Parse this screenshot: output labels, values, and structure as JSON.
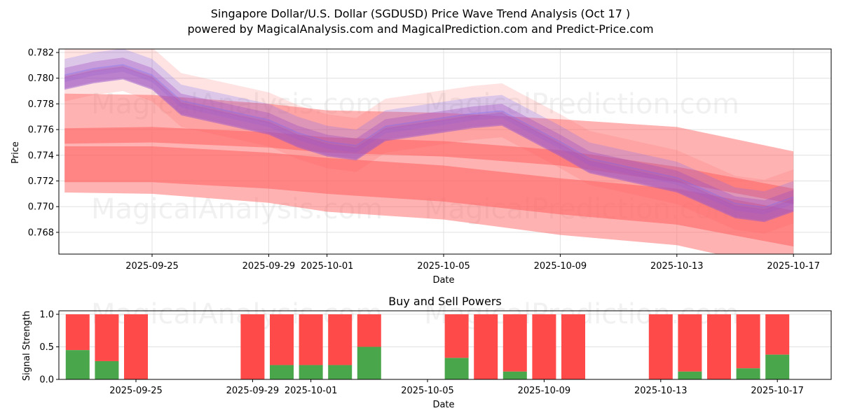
{
  "title": {
    "line1": "Singapore Dollar/U.S. Dollar (SGDUSD) Price Wave Trend Analysis (Oct 17 )",
    "line2": "powered by MagicalAnalysis.com and MagicalPrediction.com and Predict-Price.com"
  },
  "watermarks": [
    "MagicalAnalysis.com",
    "MagicalPrediction.com"
  ],
  "colors": {
    "buy": "#4aa64a",
    "sell": "#ff4a4a",
    "band_red": "#ff6666",
    "band_blue": "#6666ff",
    "band_purple": "#a04cc0"
  },
  "chart_data": [
    {
      "type": "area",
      "title": "",
      "xlabel": "Date",
      "ylabel": "Price",
      "ylim": [
        0.7663,
        0.7823
      ],
      "xlim": [
        "2025-09-21",
        "2025-10-18"
      ],
      "grid": true,
      "yticks": [
        "0.768",
        "0.770",
        "0.772",
        "0.774",
        "0.776",
        "0.778",
        "0.780",
        "0.782"
      ],
      "xticks": [
        "2025-09-25",
        "2025-09-29",
        "2025-10-01",
        "2025-10-05",
        "2025-10-09",
        "2025-10-13",
        "2025-10-17"
      ],
      "x": [
        "2025-09-22",
        "2025-09-23",
        "2025-09-24",
        "2025-09-25",
        "2025-09-26",
        "2025-09-29",
        "2025-09-30",
        "2025-10-01",
        "2025-10-02",
        "2025-10-03",
        "2025-10-06",
        "2025-10-07",
        "2025-10-08",
        "2025-10-09",
        "2025-10-10",
        "2025-10-13",
        "2025-10-14",
        "2025-10-15",
        "2025-10-16",
        "2025-10-17"
      ],
      "price_estimate": [
        0.78,
        0.7805,
        0.7808,
        0.78,
        0.778,
        0.7765,
        0.7755,
        0.7748,
        0.7745,
        0.776,
        0.777,
        0.7772,
        0.776,
        0.7748,
        0.7735,
        0.772,
        0.771,
        0.77,
        0.7697,
        0.7705
      ],
      "series": [
        {
          "name": "outer-red-band-upper",
          "x": [
            "2025-09-22",
            "2025-09-25",
            "2025-09-29",
            "2025-10-01",
            "2025-10-05",
            "2025-10-09",
            "2025-10-13",
            "2025-10-17"
          ],
          "values": [
            0.7788,
            0.7787,
            0.778,
            0.7775,
            0.7773,
            0.7768,
            0.7762,
            0.7743
          ]
        },
        {
          "name": "outer-red-band-lower",
          "x": [
            "2025-09-22",
            "2025-09-25",
            "2025-09-29",
            "2025-10-01",
            "2025-10-05",
            "2025-10-09",
            "2025-10-13",
            "2025-10-17"
          ],
          "values": [
            0.7711,
            0.771,
            0.7703,
            0.7696,
            0.769,
            0.7678,
            0.767,
            0.765
          ]
        },
        {
          "name": "red-trend-band-1",
          "x": [
            "2025-09-22",
            "2025-09-25",
            "2025-09-29",
            "2025-10-01",
            "2025-10-05",
            "2025-10-09",
            "2025-10-13",
            "2025-10-17"
          ],
          "values": [
            0.7755,
            0.7756,
            0.7752,
            0.7748,
            0.7745,
            0.7738,
            0.7725,
            0.7708
          ]
        },
        {
          "name": "red-trend-band-2",
          "x": [
            "2025-09-22",
            "2025-09-25",
            "2025-09-29",
            "2025-10-01",
            "2025-10-05",
            "2025-10-09",
            "2025-10-13",
            "2025-10-17"
          ],
          "values": [
            0.7733,
            0.7733,
            0.7728,
            0.7724,
            0.7718,
            0.7708,
            0.77,
            0.7683
          ]
        }
      ]
    },
    {
      "type": "bar",
      "title": "Buy and Sell Powers",
      "xlabel": "Date",
      "ylabel": "Signal Strength",
      "ylim": [
        0,
        1.05
      ],
      "yticks": [
        "0.0",
        "0.5",
        "1.0"
      ],
      "xticks": [
        "2025-09-25",
        "2025-09-29",
        "2025-10-01",
        "2025-10-05",
        "2025-10-09",
        "2025-10-13",
        "2025-10-17"
      ],
      "categories": [
        "2025-09-23",
        "2025-09-24",
        "2025-09-25",
        "2025-09-29",
        "2025-09-30",
        "2025-10-01",
        "2025-10-02",
        "2025-10-03",
        "2025-10-06",
        "2025-10-07",
        "2025-10-08",
        "2025-10-09",
        "2025-10-10",
        "2025-10-13",
        "2025-10-14",
        "2025-10-15",
        "2025-10-16",
        "2025-10-17"
      ],
      "series": [
        {
          "name": "Buy",
          "values": [
            0.45,
            0.28,
            0.0,
            0.0,
            0.22,
            0.22,
            0.22,
            0.5,
            0.33,
            0.0,
            0.12,
            0.0,
            0.0,
            0.0,
            0.12,
            0.0,
            0.17,
            0.38
          ]
        },
        {
          "name": "Sell",
          "values": [
            0.55,
            0.72,
            1.0,
            1.0,
            0.78,
            0.78,
            0.78,
            0.5,
            0.67,
            1.0,
            0.88,
            1.0,
            1.0,
            1.0,
            0.88,
            1.0,
            0.83,
            0.62
          ]
        }
      ]
    }
  ]
}
